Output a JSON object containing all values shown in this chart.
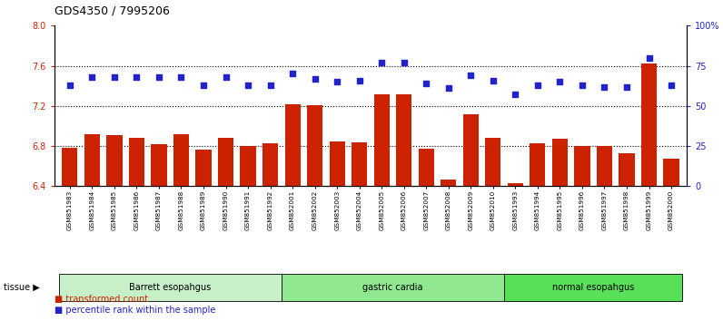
{
  "title": "GDS4350 / 7995206",
  "samples": [
    "GSM851983",
    "GSM851984",
    "GSM851985",
    "GSM851986",
    "GSM851987",
    "GSM851988",
    "GSM851989",
    "GSM851990",
    "GSM851991",
    "GSM851992",
    "GSM852001",
    "GSM852002",
    "GSM852003",
    "GSM852004",
    "GSM852005",
    "GSM852006",
    "GSM852007",
    "GSM852008",
    "GSM852009",
    "GSM852010",
    "GSM851993",
    "GSM851994",
    "GSM851995",
    "GSM851996",
    "GSM851997",
    "GSM851998",
    "GSM851999",
    "GSM852000"
  ],
  "transformed_count": [
    6.78,
    6.92,
    6.91,
    6.88,
    6.82,
    6.92,
    6.76,
    6.88,
    6.8,
    6.83,
    7.22,
    7.21,
    6.85,
    6.84,
    7.32,
    7.32,
    6.77,
    6.47,
    7.12,
    6.88,
    6.43,
    6.83,
    6.87,
    6.8,
    6.8,
    6.73,
    7.62,
    6.67
  ],
  "percentile_rank": [
    63,
    68,
    68,
    68,
    68,
    68,
    63,
    68,
    63,
    63,
    70,
    67,
    65,
    66,
    77,
    77,
    64,
    61,
    69,
    66,
    57,
    63,
    65,
    63,
    62,
    62,
    80,
    63
  ],
  "groups": [
    {
      "label": "Barrett esopahgus",
      "start": 0,
      "end": 10,
      "color": "#c8f0c8"
    },
    {
      "label": "gastric cardia",
      "start": 10,
      "end": 20,
      "color": "#90e890"
    },
    {
      "label": "normal esopahgus",
      "start": 20,
      "end": 28,
      "color": "#58e058"
    }
  ],
  "bar_color": "#cc2200",
  "dot_color": "#2222cc",
  "ylim_left": [
    6.4,
    8.0
  ],
  "ybase": 6.4,
  "ylim_right": [
    0,
    100
  ],
  "yticks_left": [
    6.4,
    6.8,
    7.2,
    7.6,
    8.0
  ],
  "yticks_right": [
    0,
    25,
    50,
    75,
    100
  ],
  "ytick_labels_right": [
    "0",
    "25",
    "50",
    "75",
    "100%"
  ],
  "grid_values": [
    6.8,
    7.2,
    7.6
  ],
  "background_color": "#ffffff"
}
